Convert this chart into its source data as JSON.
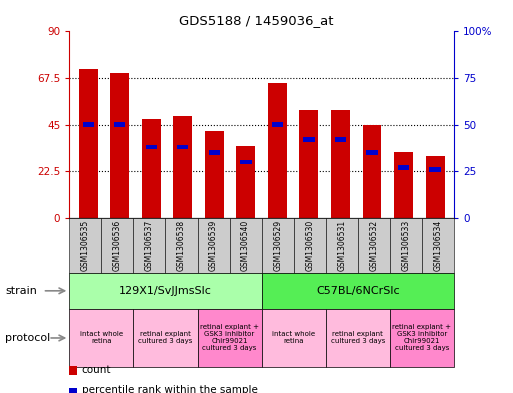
{
  "title": "GDS5188 / 1459036_at",
  "samples": [
    "GSM1306535",
    "GSM1306536",
    "GSM1306537",
    "GSM1306538",
    "GSM1306539",
    "GSM1306540",
    "GSM1306529",
    "GSM1306530",
    "GSM1306531",
    "GSM1306532",
    "GSM1306533",
    "GSM1306534"
  ],
  "count_values": [
    72,
    70,
    48,
    49,
    42,
    35,
    65,
    52,
    52,
    45,
    32,
    30
  ],
  "percentile_values": [
    50,
    50,
    38,
    38,
    35,
    30,
    50,
    42,
    42,
    35,
    27,
    26
  ],
  "ylim_left": [
    0,
    90
  ],
  "ylim_right": [
    0,
    100
  ],
  "yticks_left": [
    0,
    22.5,
    45,
    67.5,
    90
  ],
  "yticks_left_labels": [
    "0",
    "22.5",
    "45",
    "67.5",
    "90"
  ],
  "yticks_right": [
    0,
    25,
    50,
    75,
    100
  ],
  "yticks_right_labels": [
    "0",
    "25",
    "50",
    "75",
    "100%"
  ],
  "color_red": "#CC0000",
  "color_blue": "#0000CC",
  "bar_width": 0.6,
  "strain_groups": [
    {
      "label": "129X1/SvJJmsSlc",
      "start": 0,
      "end": 6,
      "color": "#AAFFAA"
    },
    {
      "label": "C57BL/6NCrSlc",
      "start": 6,
      "end": 12,
      "color": "#55EE55"
    }
  ],
  "protocol_groups": [
    {
      "label": "intact whole\nretina",
      "start": 0,
      "end": 2,
      "color": "#FFBBDD"
    },
    {
      "label": "retinal explant\ncultured 3 days",
      "start": 2,
      "end": 4,
      "color": "#FFBBDD"
    },
    {
      "label": "retinal explant +\nGSK3 inhibitor\nChir99021\ncultured 3 days",
      "start": 4,
      "end": 6,
      "color": "#FF88CC"
    },
    {
      "label": "intact whole\nretina",
      "start": 6,
      "end": 8,
      "color": "#FFBBDD"
    },
    {
      "label": "retinal explant\ncultured 3 days",
      "start": 8,
      "end": 10,
      "color": "#FFBBDD"
    },
    {
      "label": "retinal explant +\nGSK3 inhibitor\nChir99021\ncultured 3 days",
      "start": 10,
      "end": 12,
      "color": "#FF88CC"
    }
  ],
  "legend_count_label": "count",
  "legend_percentile_label": "percentile rank within the sample",
  "strain_label": "strain",
  "protocol_label": "protocol",
  "bg_color": "#FFFFFF",
  "tick_color_left": "#CC0000",
  "tick_color_right": "#0000CC",
  "sample_bg_color": "#CCCCCC",
  "arrow_color": "#888888"
}
